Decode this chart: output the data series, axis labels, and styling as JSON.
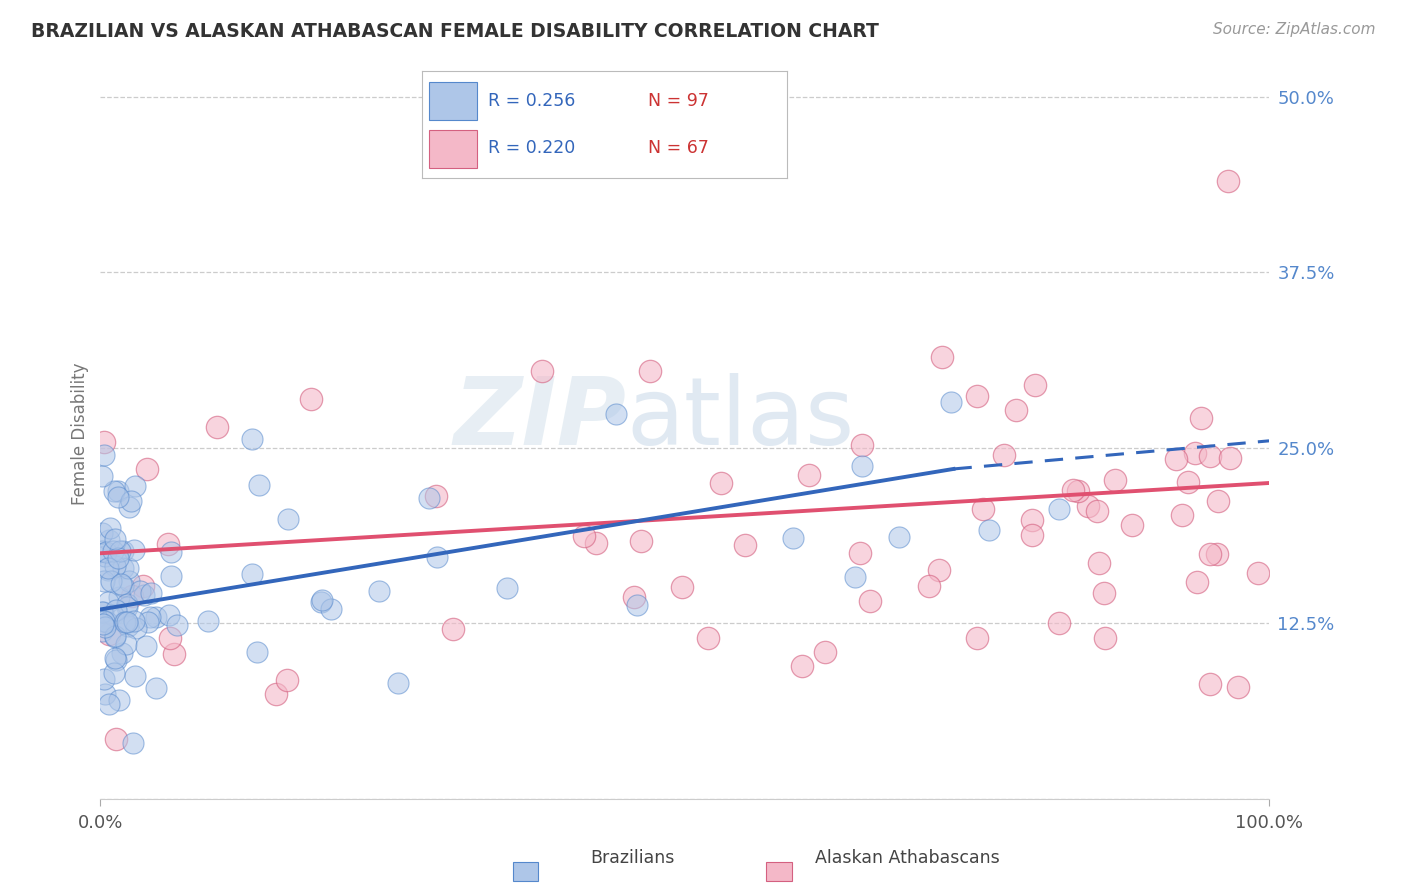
{
  "title": "BRAZILIAN VS ALASKAN ATHABASCAN FEMALE DISABILITY CORRELATION CHART",
  "source": "Source: ZipAtlas.com",
  "ylabel": "Female Disability",
  "x_min": 0.0,
  "x_max": 1.0,
  "y_min": 0.0,
  "y_max": 0.52,
  "y_ticks": [
    0.0,
    0.125,
    0.25,
    0.375,
    0.5
  ],
  "y_tick_labels": [
    "",
    "12.5%",
    "25.0%",
    "37.5%",
    "50.0%"
  ],
  "blue_R": 0.256,
  "blue_N": 97,
  "pink_R": 0.22,
  "pink_N": 67,
  "blue_color": "#aec6e8",
  "blue_edge_color": "#5588cc",
  "pink_color": "#f4b8c8",
  "pink_edge_color": "#d46080",
  "blue_line_color": "#3366bb",
  "pink_line_color": "#e05070",
  "blue_label": "Brazilians",
  "pink_label": "Alaskan Athabascans",
  "legend_r_color": "#3366bb",
  "legend_n_color": "#cc3333",
  "watermark_color": "#ccd8e8",
  "title_color": "#333333",
  "source_color": "#999999",
  "tick_color": "#5588cc",
  "xlabel_color": "#555555",
  "grid_color": "#cccccc",
  "background_color": "#ffffff",
  "blue_line_start_x": 0.0,
  "blue_line_start_y": 0.135,
  "blue_line_solid_end_x": 0.73,
  "blue_line_solid_end_y": 0.235,
  "blue_line_dash_end_x": 1.0,
  "blue_line_dash_end_y": 0.255,
  "pink_line_start_x": 0.0,
  "pink_line_start_y": 0.175,
  "pink_line_end_x": 1.0,
  "pink_line_end_y": 0.225
}
